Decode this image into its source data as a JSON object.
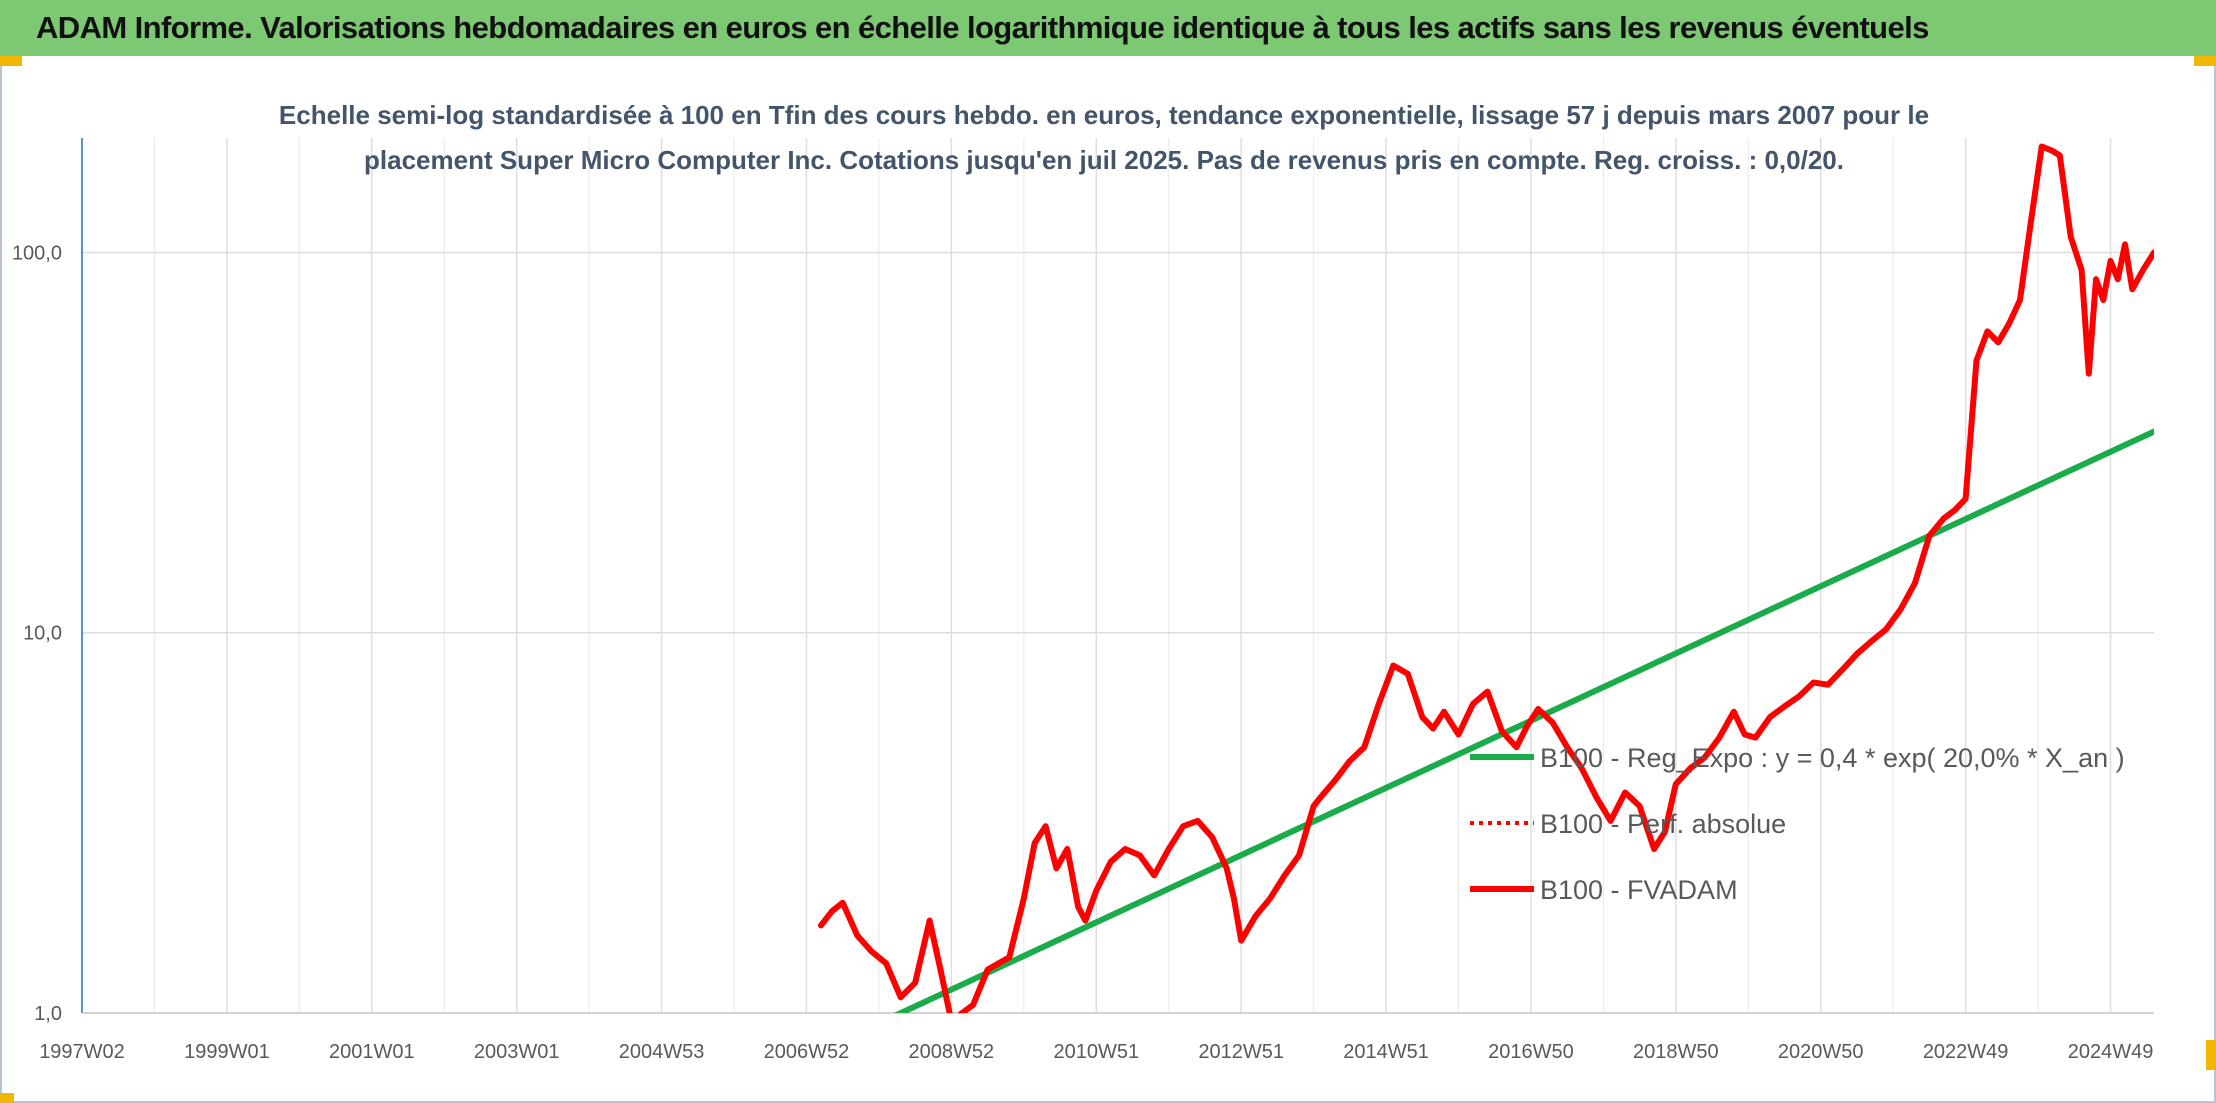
{
  "header": {
    "title": "ADAM Informe. Valorisations hebdomadaires en euros en échelle logarithmique identique à tous les actifs sans les revenus éventuels"
  },
  "chart_data": {
    "type": "line",
    "subtitle_lines": [
      "Echelle semi-log standardisée à 100 en Tfin des cours hebdo. en euros, tendance exponentielle, lissage 57 j depuis mars 2007 pour le",
      "placement Super Micro Computer Inc. Cotations jusqu'en juil 2025. Pas de revenus pris en compte. Reg. croiss. : 0,0/20."
    ],
    "y_scale": "log",
    "ylim": [
      1,
      200
    ],
    "y_ticks": [
      {
        "value": 1,
        "label": "1,0"
      },
      {
        "value": 10,
        "label": "10,0"
      },
      {
        "value": 100,
        "label": "100,0"
      }
    ],
    "xlim": [
      1997.0,
      2025.6
    ],
    "x_ticks": [
      {
        "value": 1997.0,
        "label": "1997W02"
      },
      {
        "value": 1999.0,
        "label": "1999W01"
      },
      {
        "value": 2001.0,
        "label": "2001W01"
      },
      {
        "value": 2003.0,
        "label": "2003W01"
      },
      {
        "value": 2005.0,
        "label": "2004W53"
      },
      {
        "value": 2007.0,
        "label": "2006W52"
      },
      {
        "value": 2009.0,
        "label": "2008W52"
      },
      {
        "value": 2011.0,
        "label": "2010W51"
      },
      {
        "value": 2013.0,
        "label": "2012W51"
      },
      {
        "value": 2015.0,
        "label": "2014W51"
      },
      {
        "value": 2017.0,
        "label": "2016W50"
      },
      {
        "value": 2019.0,
        "label": "2018W50"
      },
      {
        "value": 2021.0,
        "label": "2020W50"
      },
      {
        "value": 2023.0,
        "label": "2022W49"
      },
      {
        "value": 2025.0,
        "label": "2024W49"
      }
    ],
    "grid": true,
    "legend_position": "center-right",
    "series": [
      {
        "name": "B100 - Reg_Expo : y = 0,4 * exp( 20,0% *  X_an )",
        "color": "#1aab4b",
        "style": "solid",
        "x": [
          2008.0,
          2025.6
        ],
        "y": [
          0.94,
          33.8
        ]
      },
      {
        "name": "B100 - Perf. absolue",
        "color": "#ff0000",
        "style": "dotted",
        "x": [],
        "y": []
      },
      {
        "name": "B100 - FVADAM",
        "color": "#ff0000",
        "style": "solid",
        "x": [
          2007.2,
          2007.35,
          2007.5,
          2007.7,
          2007.9,
          2008.1,
          2008.3,
          2008.5,
          2008.7,
          2008.85,
          2009.0,
          2009.15,
          2009.3,
          2009.5,
          2009.65,
          2009.8,
          2010.0,
          2010.15,
          2010.3,
          2010.45,
          2010.6,
          2010.75,
          2010.85,
          2011.0,
          2011.2,
          2011.4,
          2011.6,
          2011.8,
          2012.0,
          2012.2,
          2012.4,
          2012.6,
          2012.8,
          2012.9,
          2013.0,
          2013.2,
          2013.4,
          2013.6,
          2013.8,
          2014.0,
          2014.1,
          2014.3,
          2014.5,
          2014.7,
          2014.9,
          2015.1,
          2015.3,
          2015.5,
          2015.65,
          2015.8,
          2016.0,
          2016.2,
          2016.4,
          2016.6,
          2016.8,
          2016.95,
          2017.1,
          2017.3,
          2017.5,
          2017.7,
          2017.9,
          2018.1,
          2018.3,
          2018.5,
          2018.7,
          2018.85,
          2019.0,
          2019.2,
          2019.4,
          2019.6,
          2019.8,
          2019.95,
          2020.1,
          2020.3,
          2020.5,
          2020.7,
          2020.9,
          2021.1,
          2021.3,
          2021.5,
          2021.7,
          2021.9,
          2022.1,
          2022.3,
          2022.5,
          2022.7,
          2022.85,
          2023.0,
          2023.15,
          2023.3,
          2023.45,
          2023.6,
          2023.75,
          2023.9,
          2024.05,
          2024.2,
          2024.3,
          2024.45,
          2024.6,
          2024.7,
          2024.8,
          2024.9,
          2025.0,
          2025.1,
          2025.2,
          2025.3,
          2025.45,
          2025.6
        ],
        "y": [
          1.7,
          1.85,
          1.95,
          1.6,
          1.45,
          1.35,
          1.1,
          1.2,
          1.75,
          1.3,
          0.95,
          1.0,
          1.05,
          1.3,
          1.35,
          1.4,
          2.0,
          2.8,
          3.1,
          2.4,
          2.7,
          1.9,
          1.75,
          2.1,
          2.5,
          2.7,
          2.6,
          2.3,
          2.7,
          3.1,
          3.2,
          2.9,
          2.4,
          2.0,
          1.55,
          1.8,
          2.0,
          2.3,
          2.6,
          3.5,
          3.7,
          4.1,
          4.6,
          5.0,
          6.5,
          8.2,
          7.8,
          6.0,
          5.6,
          6.2,
          5.4,
          6.5,
          7.0,
          5.5,
          5.0,
          5.7,
          6.3,
          5.8,
          5.0,
          4.4,
          3.7,
          3.2,
          3.8,
          3.5,
          2.7,
          3.0,
          4.0,
          4.4,
          4.7,
          5.3,
          6.2,
          5.4,
          5.3,
          6.0,
          6.4,
          6.8,
          7.4,
          7.3,
          8.0,
          8.8,
          9.5,
          10.2,
          11.5,
          13.5,
          18.0,
          20.0,
          21.0,
          22.5,
          52.0,
          62.0,
          58.0,
          65.0,
          75.0,
          120.0,
          190.0,
          185.0,
          180.0,
          110.0,
          90.0,
          48.0,
          85.0,
          75.0,
          95.0,
          85.0,
          105.0,
          80.0,
          90.0,
          100.0
        ]
      }
    ]
  }
}
